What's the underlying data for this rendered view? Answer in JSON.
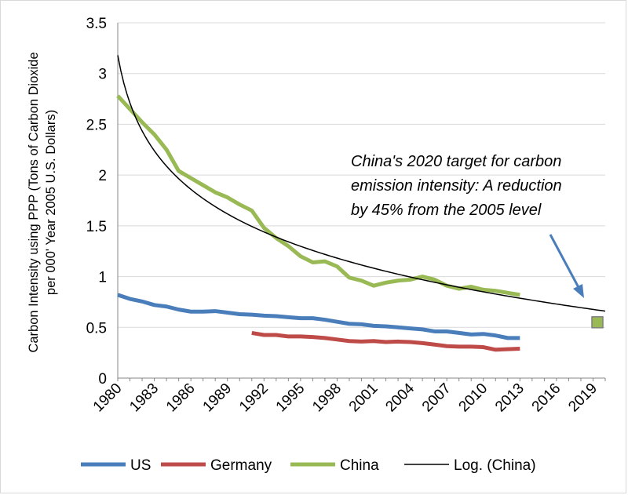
{
  "chart_data": {
    "type": "line",
    "ylabel": [
      "Carbon Intensity using PPP (Tons of Carbon Dioxide",
      "per 000' Year 2005 U.S. Dollars)"
    ],
    "xlabel": "",
    "ylim": [
      0,
      3.5
    ],
    "y_ticks": [
      "0",
      "0.5",
      "1",
      "1.5",
      "2",
      "2.5",
      "3",
      "3.5"
    ],
    "xlim": [
      1980,
      2020
    ],
    "x_ticks": [
      "1980",
      "1983",
      "1986",
      "1989",
      "1992",
      "1995",
      "1998",
      "2001",
      "2004",
      "2007",
      "2010",
      "2013",
      "2016",
      "2019"
    ],
    "grid": "horizontal",
    "legend_position": "bottom",
    "colors": {
      "US": "#4a7ebb",
      "Germany": "#be4b48",
      "China": "#98b954",
      "Log": "#000000",
      "arrow": "#4a7ebb",
      "target_fill": "#98b954",
      "target_border": "#7f7f7f",
      "grid": "#d9d9d9",
      "axis": "#868686"
    },
    "series": [
      {
        "name": "US",
        "x": [
          1980,
          1981,
          1982,
          1983,
          1984,
          1985,
          1986,
          1987,
          1988,
          1989,
          1990,
          1991,
          1992,
          1993,
          1994,
          1995,
          1996,
          1997,
          1998,
          1999,
          2000,
          2001,
          2002,
          2003,
          2004,
          2005,
          2006,
          2007,
          2008,
          2009,
          2010,
          2011,
          2012,
          2013
        ],
        "values": [
          0.82,
          0.78,
          0.755,
          0.72,
          0.705,
          0.675,
          0.655,
          0.655,
          0.66,
          0.645,
          0.63,
          0.625,
          0.615,
          0.61,
          0.6,
          0.59,
          0.59,
          0.575,
          0.555,
          0.535,
          0.53,
          0.515,
          0.51,
          0.5,
          0.49,
          0.48,
          0.46,
          0.46,
          0.445,
          0.43,
          0.435,
          0.42,
          0.395,
          0.395
        ]
      },
      {
        "name": "Germany",
        "x": [
          1991,
          1992,
          1993,
          1994,
          1995,
          1996,
          1997,
          1998,
          1999,
          2000,
          2001,
          2002,
          2003,
          2004,
          2005,
          2006,
          2007,
          2008,
          2009,
          2010,
          2011,
          2012,
          2013
        ],
        "values": [
          0.445,
          0.425,
          0.425,
          0.41,
          0.41,
          0.405,
          0.395,
          0.38,
          0.365,
          0.36,
          0.365,
          0.355,
          0.36,
          0.355,
          0.345,
          0.33,
          0.315,
          0.31,
          0.31,
          0.305,
          0.28,
          0.285,
          0.29
        ]
      },
      {
        "name": "China",
        "x": [
          1980,
          1981,
          1982,
          1983,
          1984,
          1985,
          1986,
          1987,
          1988,
          1989,
          1990,
          1991,
          1992,
          1993,
          1994,
          1995,
          1996,
          1997,
          1998,
          1999,
          2000,
          2001,
          2002,
          2003,
          2004,
          2005,
          2006,
          2007,
          2008,
          2009,
          2010,
          2011,
          2012,
          2013
        ],
        "values": [
          2.78,
          2.65,
          2.52,
          2.4,
          2.25,
          2.04,
          1.97,
          1.9,
          1.83,
          1.78,
          1.71,
          1.65,
          1.48,
          1.38,
          1.3,
          1.2,
          1.14,
          1.15,
          1.1,
          0.99,
          0.96,
          0.91,
          0.94,
          0.96,
          0.97,
          1.0,
          0.97,
          0.91,
          0.88,
          0.9,
          0.87,
          0.86,
          0.84,
          0.82
        ]
      },
      {
        "name": "Log. (China)",
        "type": "log_trendline",
        "x": [
          1980,
          2020
        ],
        "values": [
          3.18,
          0.66
        ]
      }
    ],
    "target_point": {
      "x": 2020,
      "value": 0.55
    },
    "annotation": [
      "China's 2020 target for carbon",
      "emission intensity: A reduction",
      "by 45% from the 2005 level"
    ]
  }
}
